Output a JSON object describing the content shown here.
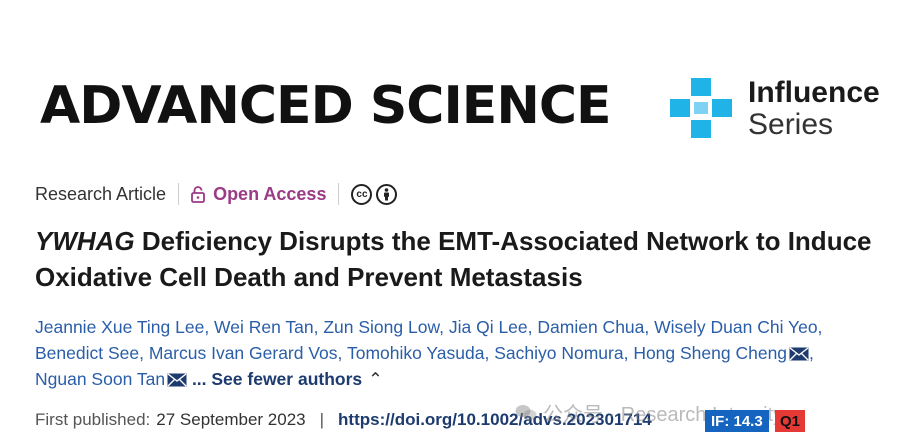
{
  "journal": {
    "name": "ADVANCED SCIENCE",
    "series_line1": "Influence",
    "series_line2": "Series"
  },
  "meta": {
    "article_type": "Research Article",
    "open_access": "Open Access",
    "license_cc": "cc"
  },
  "title": {
    "gene": "YWHAG",
    "rest_line": " Deficiency Disrupts the EMT-Associated Network to Induce Oxidative Cell Death and Prevent Metastasis"
  },
  "authors": [
    "Jeannie Xue Ting Lee",
    "Wei Ren Tan",
    "Zun Siong Low",
    "Jia Qi Lee",
    "Damien Chua",
    "Wisely Duan Chi Yeo",
    "Benedict See",
    "Marcus Ivan Gerard Vos",
    "Tomohiko Yasuda",
    "Sachiyo Nomura",
    "Hong Sheng Cheng",
    "Nguan Soon Tan"
  ],
  "see_fewer": "... See fewer authors",
  "publication": {
    "label": "First published:",
    "date": "27 September 2023",
    "separator": "|",
    "doi": "https://doi.org/10.1002/advs.202301714"
  },
  "watermark": "公众号 · Research Integrity",
  "badges": {
    "impact_factor": "IF: 14.3",
    "quartile": "Q1"
  },
  "colors": {
    "accent_purple": "#9b3a85",
    "link_blue": "#2a5ea8",
    "logo_cyan": "#1fb3e8",
    "if_blue": "#1565c0",
    "q_red": "#e53935"
  }
}
